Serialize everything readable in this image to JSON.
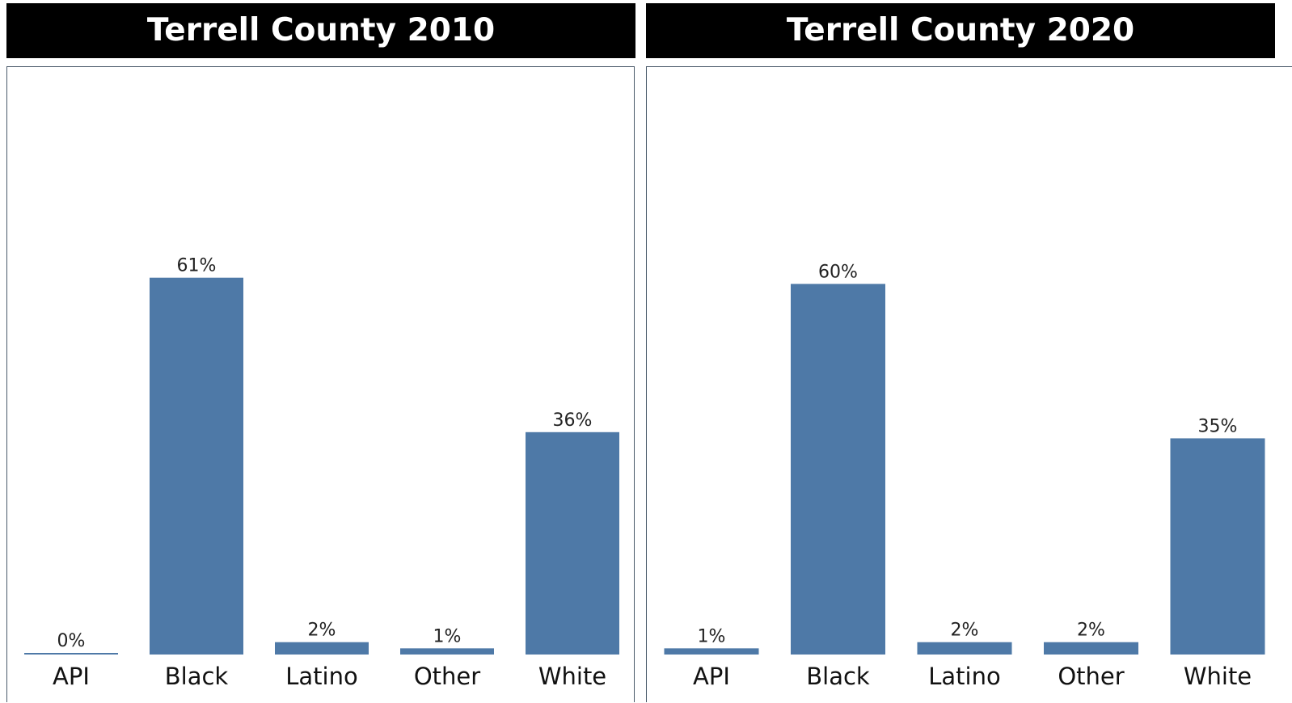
{
  "chart_data": [
    {
      "type": "bar",
      "title": "Terrell County 2010",
      "categories": [
        "API",
        "Black",
        "Latino",
        "Other",
        "White"
      ],
      "values": [
        0,
        61,
        2,
        1,
        36
      ],
      "value_labels": [
        "0%",
        "61%",
        "2%",
        "1%",
        "36%"
      ],
      "ylim": [
        0,
        90
      ],
      "grid": false,
      "bar_color": "#4e79a7"
    },
    {
      "type": "bar",
      "title": "Terrell County 2020",
      "categories": [
        "API",
        "Black",
        "Latino",
        "Other",
        "White"
      ],
      "values": [
        1,
        60,
        2,
        2,
        35
      ],
      "value_labels": [
        "1%",
        "60%",
        "2%",
        "2%",
        "35%"
      ],
      "ylim": [
        0,
        90
      ],
      "grid": false,
      "bar_color": "#4e79a7"
    }
  ]
}
